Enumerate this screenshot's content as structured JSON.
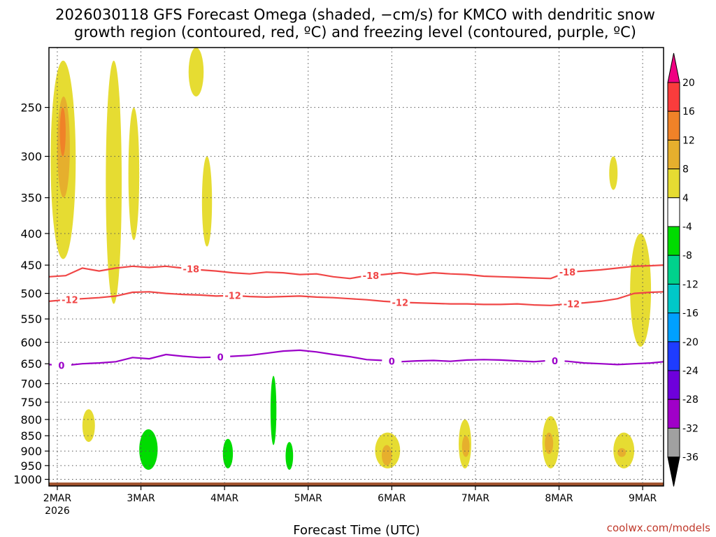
{
  "chart_data": {
    "type": "heatmap",
    "title_lines": [
      "2026030118 GFS Forecast Omega (shaded, −cm/s) for KMCO with dendritic snow",
      "growth region (contoured, red, ºC) and freezing level (contoured, purple, ºC)"
    ],
    "xlabel": "Forecast Time (UTC)",
    "x_units": "days after 2MAR 00Z",
    "xlim": [
      -0.1,
      7.25
    ],
    "x_ticks": [
      {
        "x": 0,
        "label": "2MAR",
        "sub": "2026"
      },
      {
        "x": 1,
        "label": "3MAR",
        "sub": ""
      },
      {
        "x": 2,
        "label": "4MAR",
        "sub": ""
      },
      {
        "x": 3,
        "label": "5MAR",
        "sub": ""
      },
      {
        "x": 4,
        "label": "6MAR",
        "sub": ""
      },
      {
        "x": 5,
        "label": "7MAR",
        "sub": ""
      },
      {
        "x": 6,
        "label": "8MAR",
        "sub": ""
      },
      {
        "x": 7,
        "label": "9MAR",
        "sub": ""
      }
    ],
    "y_axis": "pressure (hPa), log scale",
    "ylim": [
      1025,
      200
    ],
    "y_ticks": [
      250,
      300,
      350,
      400,
      450,
      500,
      550,
      600,
      650,
      700,
      750,
      800,
      850,
      900,
      950,
      1000
    ],
    "colorbar": {
      "levels": [
        -36,
        -32,
        -28,
        -24,
        -20,
        -16,
        -12,
        -8,
        -4,
        4,
        8,
        12,
        16,
        20
      ],
      "labels": [
        "-36",
        "-32",
        "-28",
        "-24",
        "-20",
        "-16",
        "-12",
        "-8",
        "-4",
        "4",
        "8",
        "12",
        "16",
        "20"
      ],
      "colors": [
        "#000000",
        "#a0a0a0",
        "#a000c8",
        "#6e00dc",
        "#1e3cff",
        "#00a0ff",
        "#00c8c8",
        "#00d28c",
        "#00dc00",
        "#ffffff",
        "#e6dc32",
        "#e6af2d",
        "#f08228",
        "#fa3c3c",
        "#f00082"
      ]
    },
    "ground": {
      "color": "#a0522d",
      "top_pressure": 1012
    },
    "series": [
      {
        "name": "-18C isotherm",
        "color": "#f04646",
        "label": "-18",
        "x": [
          -0.1,
          0.1,
          0.3,
          0.5,
          0.7,
          0.9,
          1.1,
          1.3,
          1.5,
          1.7,
          1.9,
          2.1,
          2.3,
          2.5,
          2.7,
          2.9,
          3.1,
          3.3,
          3.5,
          3.7,
          3.9,
          4.1,
          4.3,
          4.5,
          4.7,
          4.9,
          5.1,
          5.3,
          5.5,
          5.7,
          5.9,
          6.1,
          6.3,
          6.5,
          6.7,
          6.9,
          7.1,
          7.25
        ],
        "y": [
          470,
          468,
          455,
          460,
          455,
          452,
          454,
          452,
          455,
          458,
          460,
          463,
          465,
          462,
          463,
          466,
          465,
          470,
          473,
          468,
          466,
          463,
          466,
          463,
          465,
          466,
          469,
          470,
          471,
          472,
          473,
          462,
          460,
          458,
          455,
          452,
          451,
          450
        ],
        "label_x": [
          1.6,
          3.75,
          6.1
        ]
      },
      {
        "name": "-12C isotherm",
        "color": "#f04646",
        "label": "-12",
        "x": [
          -0.1,
          0.1,
          0.3,
          0.5,
          0.7,
          0.9,
          1.1,
          1.3,
          1.5,
          1.7,
          1.9,
          2.1,
          2.3,
          2.5,
          2.7,
          2.9,
          3.1,
          3.3,
          3.5,
          3.7,
          3.9,
          4.1,
          4.3,
          4.5,
          4.7,
          4.9,
          5.1,
          5.3,
          5.5,
          5.7,
          5.9,
          6.1,
          6.3,
          6.5,
          6.7,
          6.9,
          7.1,
          7.25
        ],
        "y": [
          515,
          512,
          510,
          508,
          505,
          498,
          497,
          500,
          502,
          503,
          505,
          504,
          506,
          507,
          506,
          505,
          507,
          508,
          510,
          512,
          515,
          517,
          518,
          519,
          520,
          520,
          521,
          521,
          520,
          522,
          523,
          520,
          518,
          515,
          510,
          500,
          498,
          497
        ],
        "label_x": [
          0.15,
          2.1,
          4.1,
          6.15
        ]
      },
      {
        "name": "0C isotherm (freezing level)",
        "color": "#9b00c8",
        "label": "0",
        "x": [
          -0.1,
          0.1,
          0.3,
          0.5,
          0.7,
          0.9,
          1.1,
          1.3,
          1.5,
          1.7,
          1.9,
          2.1,
          2.3,
          2.5,
          2.7,
          2.9,
          3.1,
          3.3,
          3.5,
          3.7,
          3.9,
          4.1,
          4.3,
          4.5,
          4.7,
          4.9,
          5.1,
          5.3,
          5.5,
          5.7,
          5.9,
          6.1,
          6.3,
          6.5,
          6.7,
          6.9,
          7.1,
          7.25
        ],
        "y": [
          652,
          654,
          650,
          648,
          645,
          635,
          638,
          628,
          632,
          635,
          634,
          632,
          630,
          625,
          620,
          618,
          622,
          628,
          633,
          640,
          642,
          645,
          643,
          642,
          644,
          641,
          640,
          641,
          643,
          645,
          642,
          644,
          648,
          650,
          652,
          650,
          648,
          645
        ],
        "label_x": [
          0.05,
          1.95,
          4.0,
          5.95
        ]
      }
    ],
    "shaded_regions": [
      {
        "level": "4 to 8",
        "x": [
          -0.08,
          0.22
        ],
        "p": [
          210,
          440
        ]
      },
      {
        "level": "8 to 12",
        "x": [
          0.0,
          0.15
        ],
        "p": [
          240,
          350
        ]
      },
      {
        "level": "12 to 16",
        "x": [
          0.03,
          0.1
        ],
        "p": [
          250,
          300
        ]
      },
      {
        "level": "4 to 8",
        "x": [
          0.58,
          0.77
        ],
        "p": [
          210,
          520
        ]
      },
      {
        "level": "4 to 8",
        "x": [
          0.85,
          0.98
        ],
        "p": [
          250,
          410
        ]
      },
      {
        "level": "4 to 8",
        "x": [
          1.57,
          1.75
        ],
        "p": [
          200,
          240
        ]
      },
      {
        "level": "4 to 8",
        "x": [
          1.73,
          1.85
        ],
        "p": [
          300,
          420
        ]
      },
      {
        "level": "4 to 8",
        "x": [
          6.6,
          6.7
        ],
        "p": [
          300,
          340
        ]
      },
      {
        "level": "4 to 8",
        "x": [
          6.85,
          7.1
        ],
        "p": [
          400,
          610
        ]
      },
      {
        "level": "-8 to -4",
        "x": [
          0.98,
          1.2
        ],
        "p": [
          830,
          965
        ]
      },
      {
        "level": "-8 to -4",
        "x": [
          1.98,
          2.1
        ],
        "p": [
          860,
          960
        ]
      },
      {
        "level": "-8 to -4",
        "x": [
          2.55,
          2.62
        ],
        "p": [
          680,
          880
        ]
      },
      {
        "level": "-8 to -4",
        "x": [
          2.73,
          2.82
        ],
        "p": [
          870,
          965
        ]
      },
      {
        "level": "4 to 8",
        "x": [
          0.3,
          0.45
        ],
        "p": [
          770,
          870
        ]
      },
      {
        "level": "4 to 8",
        "x": [
          3.8,
          4.1
        ],
        "p": [
          840,
          960
        ]
      },
      {
        "level": "8 to 12",
        "x": [
          3.88,
          4.0
        ],
        "p": [
          880,
          950
        ]
      },
      {
        "level": "4 to 8",
        "x": [
          4.8,
          4.95
        ],
        "p": [
          800,
          960
        ]
      },
      {
        "level": "8 to 12",
        "x": [
          4.84,
          4.93
        ],
        "p": [
          850,
          920
        ]
      },
      {
        "level": "4 to 8",
        "x": [
          5.8,
          6.0
        ],
        "p": [
          790,
          960
        ]
      },
      {
        "level": "8 to 12",
        "x": [
          5.83,
          5.93
        ],
        "p": [
          840,
          910
        ]
      },
      {
        "level": "4 to 8",
        "x": [
          6.65,
          6.9
        ],
        "p": [
          840,
          960
        ]
      },
      {
        "level": "8 to 12",
        "x": [
          6.7,
          6.8
        ],
        "p": [
          890,
          920
        ]
      }
    ]
  },
  "credit": "coolwx.com/models"
}
